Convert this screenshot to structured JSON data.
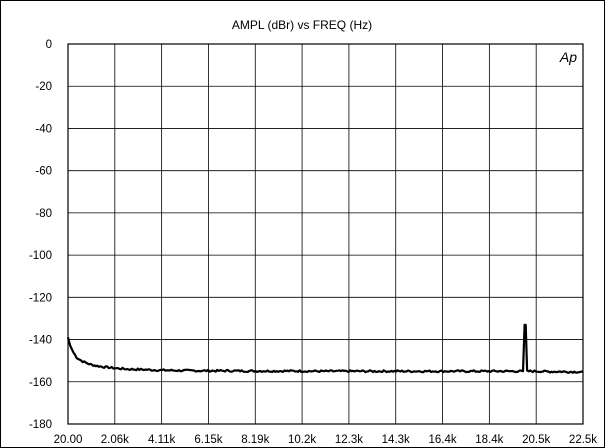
{
  "chart_data": {
    "type": "line",
    "title": "AMPL (dBr)  vs  FREQ (Hz)",
    "watermark": "Ap",
    "xlabel": "",
    "ylabel": "",
    "xlim": [
      20,
      22500
    ],
    "ylim": [
      -180,
      0
    ],
    "grid": true,
    "legend": "none",
    "x_tick_labels": [
      "20.00",
      "2.06k",
      "4.11k",
      "6.15k",
      "8.19k",
      "10.2k",
      "12.3k",
      "14.3k",
      "16.4k",
      "18.4k",
      "20.5k",
      "22.5k"
    ],
    "y_tick_labels": [
      "0",
      "-20",
      "-40",
      "-60",
      "-80",
      "-100",
      "-120",
      "-140",
      "-160",
      "-180"
    ],
    "series_color": "#000000",
    "series": [
      {
        "x": [
          20,
          120,
          250,
          400,
          600,
          800,
          1000,
          1300,
          1600,
          2000,
          2600,
          3200,
          4000,
          5000,
          6000,
          7000,
          8000,
          9000,
          10000,
          11000,
          12000,
          13000,
          14000,
          15000,
          16000,
          17000,
          18000,
          19000,
          19880,
          19950,
          20000,
          20060,
          20130,
          20500,
          21000,
          21500,
          22000,
          22500
        ],
        "y": [
          -139,
          -143,
          -146,
          -148.5,
          -150,
          -151,
          -151.8,
          -152.5,
          -153,
          -153.5,
          -154,
          -154.2,
          -154.5,
          -154.7,
          -154.8,
          -154.8,
          -154.9,
          -154.9,
          -154.9,
          -155,
          -155,
          -155,
          -155,
          -155,
          -155,
          -155,
          -155,
          -155,
          -155,
          -133,
          -133,
          -155,
          -155,
          -155,
          -155.2,
          -155.2,
          -155.3,
          -155.3
        ]
      }
    ]
  }
}
